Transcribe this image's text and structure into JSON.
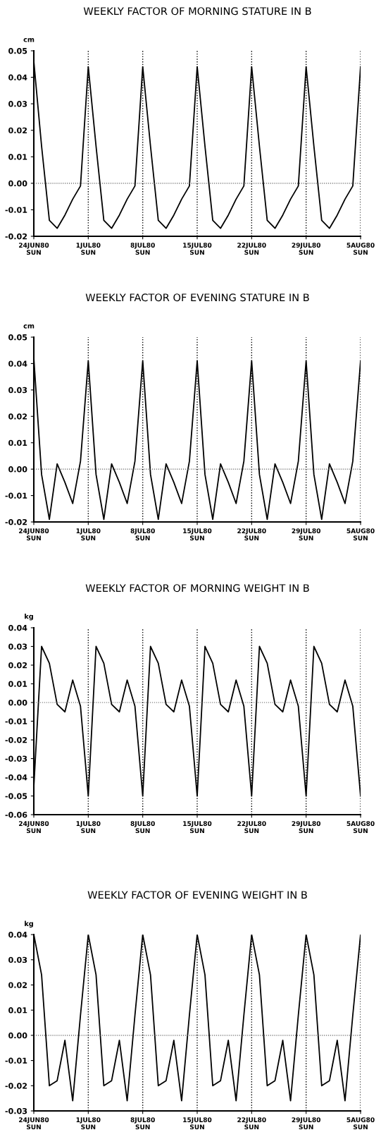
{
  "chart_data": [
    {
      "type": "line",
      "title": "WEEKLY FACTOR OF MORNING STATURE IN B",
      "ylabel": "cm",
      "series": [
        {
          "color": "#000000",
          "values": [
            0.046,
            0.014,
            -0.014,
            -0.017,
            -0.012,
            -0.006,
            -0.001,
            0.044,
            0.014,
            -0.014,
            -0.017,
            -0.012,
            -0.006,
            -0.001,
            0.044,
            0.014,
            -0.014,
            -0.017,
            -0.012,
            -0.006,
            -0.001,
            0.044,
            0.014,
            -0.014,
            -0.017,
            -0.012,
            -0.006,
            -0.001,
            0.044,
            0.014,
            -0.014,
            -0.017,
            -0.012,
            -0.006,
            -0.001,
            0.044,
            0.014,
            -0.014,
            -0.017,
            -0.012,
            -0.006,
            -0.001,
            0.044
          ]
        }
      ],
      "ylim": [
        -0.02,
        0.05
      ],
      "categories": [
        "24JUN80\nSUN",
        null,
        null,
        null,
        null,
        null,
        null,
        "1JUL80\nSUN",
        null,
        null,
        null,
        null,
        null,
        null,
        "8JUL80\nSUN",
        null,
        null,
        null,
        null,
        null,
        null,
        "15JUL80\nSUN",
        null,
        null,
        null,
        null,
        null,
        null,
        "22JUL80\nSUN",
        null,
        null,
        null,
        null,
        null,
        null,
        "29JUL80\nSUN",
        null,
        null,
        null,
        null,
        null,
        null,
        "5AUG80\nSUN"
      ],
      "yticks": [
        {
          "value": -0.02,
          "label": "-0.02"
        },
        {
          "value": -0.01,
          "label": "-0.01"
        },
        {
          "value": 0,
          "label": "0.00"
        },
        {
          "value": 0.01,
          "label": "0.01"
        },
        {
          "value": 0.02,
          "label": "0.02"
        },
        {
          "value": 0.03,
          "label": "0.03"
        },
        {
          "value": 0.04,
          "label": "0.04"
        },
        {
          "value": 0.05,
          "label": "0.05"
        }
      ],
      "grid": "x",
      "ref_lines": [
        {
          "axis": "y",
          "value": 0,
          "line_style": "dotted"
        }
      ],
      "line_style": "solid"
    },
    {
      "type": "line",
      "title": "WEEKLY FACTOR OF EVENING STATURE IN B",
      "ylabel": "cm",
      "series": [
        {
          "color": "#000000",
          "values": [
            0.042,
            -0.002,
            -0.019,
            0.002,
            -0.005,
            -0.013,
            0.003,
            0.041,
            -0.002,
            -0.019,
            0.002,
            -0.005,
            -0.013,
            0.003,
            0.041,
            -0.002,
            -0.019,
            0.002,
            -0.005,
            -0.013,
            0.003,
            0.041,
            -0.002,
            -0.019,
            0.002,
            -0.005,
            -0.013,
            0.003,
            0.041,
            -0.002,
            -0.019,
            0.002,
            -0.005,
            -0.013,
            0.003,
            0.041,
            -0.002,
            -0.019,
            0.002,
            -0.005,
            -0.013,
            0.003,
            0.041
          ]
        }
      ],
      "ylim": [
        -0.02,
        0.05
      ],
      "categories": [
        "24JUN80\nSUN",
        null,
        null,
        null,
        null,
        null,
        null,
        "1JUL80\nSUN",
        null,
        null,
        null,
        null,
        null,
        null,
        "8JUL80\nSUN",
        null,
        null,
        null,
        null,
        null,
        null,
        "15JUL80\nSUN",
        null,
        null,
        null,
        null,
        null,
        null,
        "22JUL80\nSUN",
        null,
        null,
        null,
        null,
        null,
        null,
        "29JUL80\nSUN",
        null,
        null,
        null,
        null,
        null,
        null,
        "5AUG80\nSUN"
      ],
      "yticks": [
        {
          "value": -0.02,
          "label": "-0.02"
        },
        {
          "value": -0.01,
          "label": "-0.01"
        },
        {
          "value": 0,
          "label": "0.00"
        },
        {
          "value": 0.01,
          "label": "0.01"
        },
        {
          "value": 0.02,
          "label": "0.02"
        },
        {
          "value": 0.03,
          "label": "0.03"
        },
        {
          "value": 0.04,
          "label": "0.04"
        },
        {
          "value": 0.05,
          "label": "0.05"
        }
      ],
      "grid": "x",
      "ref_lines": [
        {
          "axis": "y",
          "value": 0,
          "line_style": "dotted"
        }
      ],
      "line_style": "solid"
    },
    {
      "type": "line",
      "title": "WEEKLY FACTOR OF MORNING WEIGHT IN B",
      "ylabel": "kg",
      "series": [
        {
          "color": "#000000",
          "values": [
            -0.045,
            0.03,
            0.021,
            -0.001,
            -0.005,
            0.012,
            -0.002,
            -0.05,
            0.03,
            0.021,
            -0.001,
            -0.005,
            0.012,
            -0.002,
            -0.05,
            0.03,
            0.021,
            -0.001,
            -0.005,
            0.012,
            -0.002,
            -0.05,
            0.03,
            0.021,
            -0.001,
            -0.005,
            0.012,
            -0.002,
            -0.05,
            0.03,
            0.021,
            -0.001,
            -0.005,
            0.012,
            -0.002,
            -0.05,
            0.03,
            0.021,
            -0.001,
            -0.005,
            0.012,
            -0.002,
            -0.05
          ]
        }
      ],
      "ylim": [
        -0.06,
        0.04
      ],
      "categories": [
        "24JUN80\nSUN",
        null,
        null,
        null,
        null,
        null,
        null,
        "1JUL80\nSUN",
        null,
        null,
        null,
        null,
        null,
        null,
        "8JUL80\nSUN",
        null,
        null,
        null,
        null,
        null,
        null,
        "15JUL80\nSUN",
        null,
        null,
        null,
        null,
        null,
        null,
        "22JUL80\nSUN",
        null,
        null,
        null,
        null,
        null,
        null,
        "29JUL80\nSUN",
        null,
        null,
        null,
        null,
        null,
        null,
        "5AUG80\nSUN"
      ],
      "yticks": [
        {
          "value": -0.06,
          "label": "-0.06"
        },
        {
          "value": -0.05,
          "label": "-0.05"
        },
        {
          "value": -0.04,
          "label": "-0.04"
        },
        {
          "value": -0.03,
          "label": "-0.03"
        },
        {
          "value": -0.02,
          "label": "-0.02"
        },
        {
          "value": -0.01,
          "label": "-0.01"
        },
        {
          "value": 0,
          "label": "0.00"
        },
        {
          "value": 0.01,
          "label": "0.01"
        },
        {
          "value": 0.02,
          "label": "0.02"
        },
        {
          "value": 0.03,
          "label": "0.03"
        },
        {
          "value": 0.04,
          "label": "0.04"
        }
      ],
      "grid": "x",
      "ref_lines": [
        {
          "axis": "y",
          "value": 0,
          "line_style": "dotted"
        }
      ],
      "line_style": "solid"
    },
    {
      "type": "line",
      "title": "WEEKLY FACTOR OF EVENING WEIGHT IN B",
      "ylabel": "kg",
      "series": [
        {
          "color": "#000000",
          "values": [
            0.04,
            0.024,
            -0.02,
            -0.018,
            -0.002,
            -0.026,
            0.008,
            0.04,
            0.024,
            -0.02,
            -0.018,
            -0.002,
            -0.026,
            0.008,
            0.04,
            0.024,
            -0.02,
            -0.018,
            -0.002,
            -0.026,
            0.008,
            0.04,
            0.024,
            -0.02,
            -0.018,
            -0.002,
            -0.026,
            0.008,
            0.04,
            0.024,
            -0.02,
            -0.018,
            -0.002,
            -0.026,
            0.008,
            0.04,
            0.024,
            -0.02,
            -0.018,
            -0.002,
            -0.026,
            0.008,
            0.04
          ]
        }
      ],
      "ylim": [
        -0.03,
        0.04
      ],
      "categories": [
        "24JUN80\nSUN",
        null,
        null,
        null,
        null,
        null,
        null,
        "1JUL80\nSUN",
        null,
        null,
        null,
        null,
        null,
        null,
        "8JUL80\nSUN",
        null,
        null,
        null,
        null,
        null,
        null,
        "15JUL80\nSUN",
        null,
        null,
        null,
        null,
        null,
        null,
        "22JUL80\nSUN",
        null,
        null,
        null,
        null,
        null,
        null,
        "29JUL80\nSUN",
        null,
        null,
        null,
        null,
        null,
        null,
        "5AUG80\nSUN"
      ],
      "yticks": [
        {
          "value": -0.03,
          "label": "-0.03"
        },
        {
          "value": -0.02,
          "label": "-0.02"
        },
        {
          "value": -0.01,
          "label": "-0.01"
        },
        {
          "value": 0,
          "label": "0.00"
        },
        {
          "value": 0.01,
          "label": "0.01"
        },
        {
          "value": 0.02,
          "label": "0.02"
        },
        {
          "value": 0.03,
          "label": "0.03"
        },
        {
          "value": 0.04,
          "label": "0.04"
        }
      ],
      "grid": "x",
      "ref_lines": [
        {
          "axis": "y",
          "value": 0,
          "line_style": "dotted"
        }
      ],
      "line_style": "solid"
    }
  ]
}
